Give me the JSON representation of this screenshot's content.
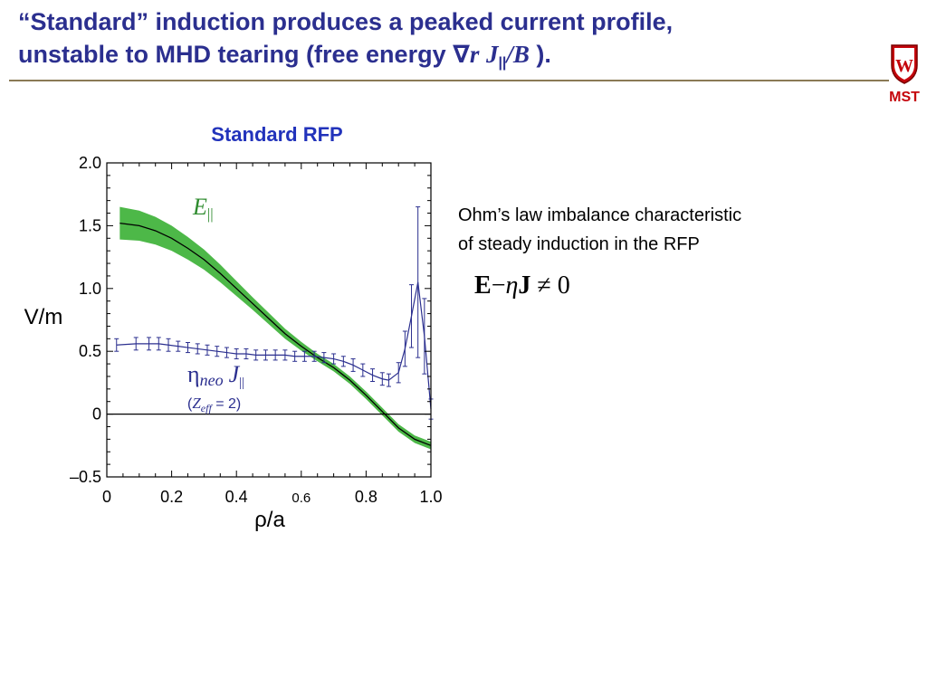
{
  "slide": {
    "title_line1": "“Standard” induction produces a peaked current profile,",
    "title_line2_prefix": "unstable to MHD tearing (free energy ",
    "title_nabla": "∇",
    "title_r": "r",
    "title_J": "J",
    "title_par": "||",
    "title_slashB": "/B",
    "title_suffix": " ).",
    "logo_text": "MST",
    "logo_shield_letter": "W"
  },
  "side_text": {
    "ohm_line1": "Ohm’s law imbalance characteristic",
    "ohm_line2": "of steady induction in the RFP",
    "eq_E": "E",
    "eq_minus": "−",
    "eq_eta": "η",
    "eq_J": "J",
    "eq_neq": "≠",
    "eq_zero": "0"
  },
  "colors": {
    "title": "#2b2f8f",
    "band": "#4db848",
    "neo": "#2b2f8f",
    "chart_title": "#2233bb",
    "logo": "#c5050c"
  },
  "chart_data": {
    "type": "line",
    "title": "Standard RFP",
    "xlabel": "ρ/a",
    "ylabel": "V/m",
    "xlim": [
      0,
      1.0
    ],
    "ylim": [
      -0.5,
      2.0
    ],
    "xticks": [
      "0",
      "0.2",
      "0.4",
      "0.6",
      "0.8",
      "1.0"
    ],
    "yticks": [
      "–0.5",
      "0",
      "0.5",
      "1.0",
      "1.5",
      "2.0"
    ],
    "grid": false,
    "series": [
      {
        "name": "E||",
        "kind": "line-with-band",
        "x": [
          0.04,
          0.1,
          0.15,
          0.2,
          0.25,
          0.3,
          0.35,
          0.4,
          0.45,
          0.5,
          0.55,
          0.6,
          0.65,
          0.7,
          0.75,
          0.8,
          0.85,
          0.9,
          0.95,
          1.0
        ],
        "y": [
          1.52,
          1.5,
          1.46,
          1.4,
          1.32,
          1.23,
          1.12,
          1.0,
          0.88,
          0.76,
          0.64,
          0.54,
          0.45,
          0.37,
          0.27,
          0.15,
          0.02,
          -0.11,
          -0.2,
          -0.25
        ],
        "band_halfwidth": [
          0.13,
          0.12,
          0.11,
          0.1,
          0.09,
          0.08,
          0.07,
          0.06,
          0.05,
          0.045,
          0.04,
          0.035,
          0.03,
          0.03,
          0.03,
          0.03,
          0.03,
          0.03,
          0.03,
          0.03
        ]
      },
      {
        "name": "ηneo J||",
        "kind": "line-with-errorbars",
        "note": "(Zeff = 2)",
        "x": [
          0.03,
          0.09,
          0.13,
          0.16,
          0.19,
          0.22,
          0.25,
          0.28,
          0.31,
          0.34,
          0.37,
          0.4,
          0.43,
          0.46,
          0.49,
          0.52,
          0.55,
          0.58,
          0.61,
          0.64,
          0.67,
          0.7,
          0.73,
          0.76,
          0.79,
          0.82,
          0.85,
          0.87,
          0.9,
          0.92,
          0.94,
          0.96,
          0.98,
          1.0
        ],
        "y": [
          0.55,
          0.56,
          0.56,
          0.56,
          0.55,
          0.54,
          0.53,
          0.52,
          0.51,
          0.5,
          0.49,
          0.48,
          0.48,
          0.47,
          0.47,
          0.47,
          0.47,
          0.46,
          0.46,
          0.46,
          0.45,
          0.44,
          0.42,
          0.39,
          0.35,
          0.31,
          0.28,
          0.27,
          0.33,
          0.52,
          0.78,
          1.05,
          0.62,
          0.04
        ],
        "err": [
          0.05,
          0.05,
          0.05,
          0.05,
          0.05,
          0.04,
          0.04,
          0.04,
          0.04,
          0.04,
          0.04,
          0.04,
          0.04,
          0.04,
          0.04,
          0.04,
          0.04,
          0.04,
          0.04,
          0.04,
          0.04,
          0.04,
          0.04,
          0.05,
          0.05,
          0.05,
          0.05,
          0.05,
          0.08,
          0.14,
          0.25,
          0.6,
          0.3,
          0.08
        ]
      }
    ],
    "annotations": {
      "e_label_main": "E",
      "e_label_sub": "||",
      "neo_eta": "η",
      "neo_sub": "neo",
      "neo_J": "J",
      "neo_J_sub": "||",
      "zeff_open": "(",
      "zeff_Z": "Z",
      "zeff_sub": "eff",
      "zeff_rest": " = 2)"
    }
  }
}
